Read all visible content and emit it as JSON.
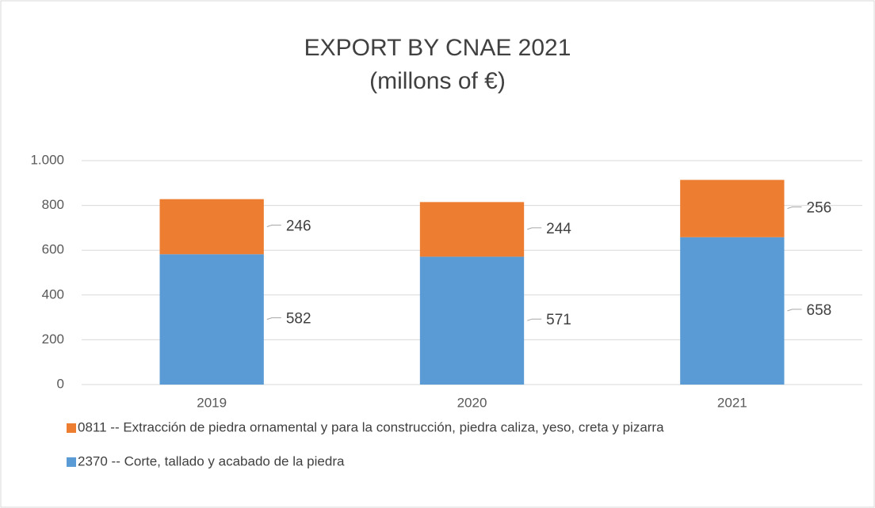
{
  "chart_data": {
    "type": "stacked_bar",
    "title": "EXPORT BY CNAE 2021",
    "subtitle": "(millons of €)",
    "categories": [
      "2019",
      "2020",
      "2021"
    ],
    "series": [
      {
        "name": "0811 -- Extracción de piedra ornamental y para la construcción, piedra caliza, yeso, creta y pizarra",
        "color": "#ed7d31",
        "values": [
          246,
          244,
          256
        ]
      },
      {
        "name": "2370 -- Corte, tallado y acabado de la piedra",
        "color": "#5b9bd5",
        "values": [
          582,
          571,
          658
        ]
      }
    ],
    "ylim": [
      0,
      1000
    ],
    "yticks": [
      0,
      200,
      400,
      600,
      800,
      {
        "value": 1000,
        "label": "1.000"
      }
    ],
    "grid": true,
    "legend": "bottom"
  }
}
